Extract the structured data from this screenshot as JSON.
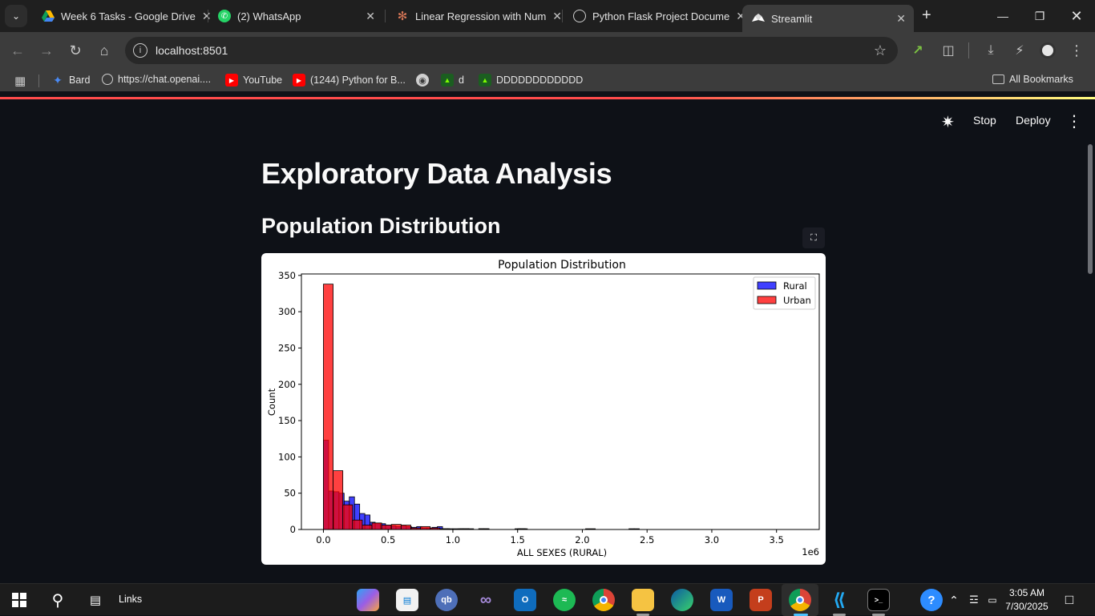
{
  "browser": {
    "tabs": [
      {
        "title": "Week 6 Tasks - Google Drive",
        "icon": "google-drive-icon",
        "active": false
      },
      {
        "title": "(2) WhatsApp",
        "icon": "whatsapp-icon",
        "active": false
      },
      {
        "title": "Linear Regression with Num",
        "icon": "claude-icon",
        "active": false
      },
      {
        "title": "Python Flask Project Docume",
        "icon": "chatgpt-icon",
        "active": false
      },
      {
        "title": "Streamlit",
        "icon": "streamlit-icon",
        "active": true
      }
    ],
    "url": "localhost:8501",
    "bookmarks": [
      {
        "label": "Bard",
        "icon": "bard-icon"
      },
      {
        "label": "https://chat.openai....",
        "icon": "chatgpt-icon"
      },
      {
        "label": "YouTube",
        "icon": "youtube-icon"
      },
      {
        "label": "(1244) Python for B...",
        "icon": "youtube-icon"
      },
      {
        "label": "",
        "icon": "globe-icon"
      },
      {
        "label": "d",
        "icon": "green-app-icon"
      },
      {
        "label": "DDDDDDDDDDDD",
        "icon": "green-app-icon"
      }
    ],
    "all_bookmarks": "All Bookmarks"
  },
  "streamlit": {
    "stop_label": "Stop",
    "deploy_label": "Deploy",
    "title": "Exploratory Data Analysis",
    "subheader": "Population Distribution"
  },
  "chart_data": {
    "type": "histogram",
    "title": "Population Distribution",
    "xlabel": "ALL SEXES (RURAL)",
    "ylabel": "Count",
    "x_offset_label": "1e6",
    "xlim": [
      -0.17,
      3.83
    ],
    "ylim": [
      0,
      352
    ],
    "xticks": [
      0.0,
      0.5,
      1.0,
      1.5,
      2.0,
      2.5,
      3.0,
      3.5
    ],
    "xtick_labels": [
      "0.0",
      "0.5",
      "1.0",
      "1.5",
      "2.0",
      "2.5",
      "3.0",
      "3.5"
    ],
    "yticks": [
      0,
      50,
      100,
      150,
      200,
      250,
      300,
      350
    ],
    "grid": false,
    "legend_position": "top-right",
    "series": [
      {
        "name": "Rural",
        "color": "#0000ff",
        "alpha": 0.75,
        "bin_width": 0.04,
        "bin_start": 0.0,
        "counts": [
          123,
          53,
          52,
          50,
          39,
          45,
          35,
          22,
          20,
          10,
          8,
          8,
          6,
          5,
          4,
          5,
          4,
          3,
          4,
          2,
          2,
          3,
          4,
          1,
          1,
          1,
          1,
          1,
          1,
          0,
          1,
          1,
          0,
          0,
          0,
          0,
          0,
          1,
          1,
          0,
          0,
          0,
          0,
          0,
          0,
          0,
          0,
          0,
          0,
          0,
          0,
          0,
          0,
          0,
          0,
          0,
          0,
          0,
          0,
          1,
          1,
          0,
          0,
          0,
          0,
          0,
          0,
          0,
          0,
          0,
          0,
          0,
          0,
          0,
          0,
          0,
          0,
          0,
          0,
          0,
          0,
          0,
          0,
          0,
          0,
          0,
          0,
          0,
          0,
          0,
          0
        ]
      },
      {
        "name": "Urban",
        "color": "#ff0000",
        "alpha": 0.75,
        "bin_width": 0.075,
        "bin_start": 0.0,
        "counts": [
          338,
          81,
          34,
          13,
          6,
          9,
          6,
          7,
          6,
          2,
          4,
          2,
          1,
          0,
          1,
          0,
          1,
          0,
          0,
          0,
          1,
          0,
          0,
          0,
          0,
          0,
          0,
          1,
          0,
          0,
          0,
          0,
          0,
          0,
          0,
          0,
          0,
          0,
          0,
          0,
          0,
          0,
          0,
          0,
          0,
          0,
          0,
          0,
          0
        ]
      }
    ]
  },
  "taskbar": {
    "search_label": "Links",
    "time": "3:05 AM",
    "date": "7/30/2025"
  }
}
